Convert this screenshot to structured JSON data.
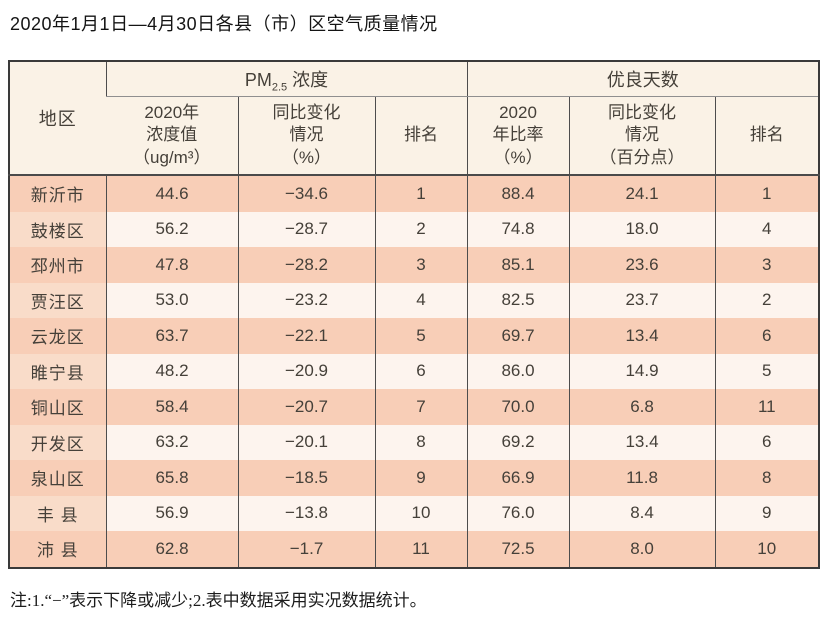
{
  "page": {
    "title": "2020年1月1日—4月30日各县（市）区空气质量情况",
    "note": "注:1.“−”表示下降或减少;2.表中数据采用实况数据统计。"
  },
  "colors": {
    "row_salmon": "#f8ceb7",
    "row_light": "#fdf4ee",
    "region_cell_light": "#f9dcc9",
    "header_bg": "#faf2e6",
    "border_dark": "#3a3a3a",
    "text": "#454039"
  },
  "table": {
    "region_header": "地区",
    "pm_group": {
      "prefix": "PM",
      "sub": "2.5",
      "suffix": "浓度"
    },
    "good_group": "优良天数",
    "subheaders": {
      "pm_value": [
        "2020年",
        "浓度值",
        "（ug/m³）"
      ],
      "pm_change": [
        "同比变化",
        "情况",
        "（%）"
      ],
      "pm_rank": [
        "排名"
      ],
      "good_ratio": [
        "2020",
        "年比率",
        "（%）"
      ],
      "good_change": [
        "同比变化",
        "情况",
        "（百分点）"
      ],
      "good_rank": [
        "排名"
      ]
    },
    "rows": [
      {
        "region": "新沂市",
        "pm_value": "44.6",
        "pm_change": "−34.6",
        "pm_rank": "1",
        "good_ratio": "88.4",
        "good_change": "24.1",
        "good_rank": "1"
      },
      {
        "region": "鼓楼区",
        "pm_value": "56.2",
        "pm_change": "−28.7",
        "pm_rank": "2",
        "good_ratio": "74.8",
        "good_change": "18.0",
        "good_rank": "4"
      },
      {
        "region": "邳州市",
        "pm_value": "47.8",
        "pm_change": "−28.2",
        "pm_rank": "3",
        "good_ratio": "85.1",
        "good_change": "23.6",
        "good_rank": "3"
      },
      {
        "region": "贾汪区",
        "pm_value": "53.0",
        "pm_change": "−23.2",
        "pm_rank": "4",
        "good_ratio": "82.5",
        "good_change": "23.7",
        "good_rank": "2"
      },
      {
        "region": "云龙区",
        "pm_value": "63.7",
        "pm_change": "−22.1",
        "pm_rank": "5",
        "good_ratio": "69.7",
        "good_change": "13.4",
        "good_rank": "6"
      },
      {
        "region": "睢宁县",
        "pm_value": "48.2",
        "pm_change": "−20.9",
        "pm_rank": "6",
        "good_ratio": "86.0",
        "good_change": "14.9",
        "good_rank": "5"
      },
      {
        "region": "铜山区",
        "pm_value": "58.4",
        "pm_change": "−20.7",
        "pm_rank": "7",
        "good_ratio": "70.0",
        "good_change": "6.8",
        "good_rank": "11"
      },
      {
        "region": "开发区",
        "pm_value": "63.2",
        "pm_change": "−20.1",
        "pm_rank": "8",
        "good_ratio": "69.2",
        "good_change": "13.4",
        "good_rank": "6"
      },
      {
        "region": "泉山区",
        "pm_value": "65.8",
        "pm_change": "−18.5",
        "pm_rank": "9",
        "good_ratio": "66.9",
        "good_change": "11.8",
        "good_rank": "8"
      },
      {
        "region": "丰 县",
        "pm_value": "56.9",
        "pm_change": "−13.8",
        "pm_rank": "10",
        "good_ratio": "76.0",
        "good_change": "8.4",
        "good_rank": "9"
      },
      {
        "region": "沛 县",
        "pm_value": "62.8",
        "pm_change": "−1.7",
        "pm_rank": "11",
        "good_ratio": "72.5",
        "good_change": "8.0",
        "good_rank": "10"
      }
    ]
  }
}
